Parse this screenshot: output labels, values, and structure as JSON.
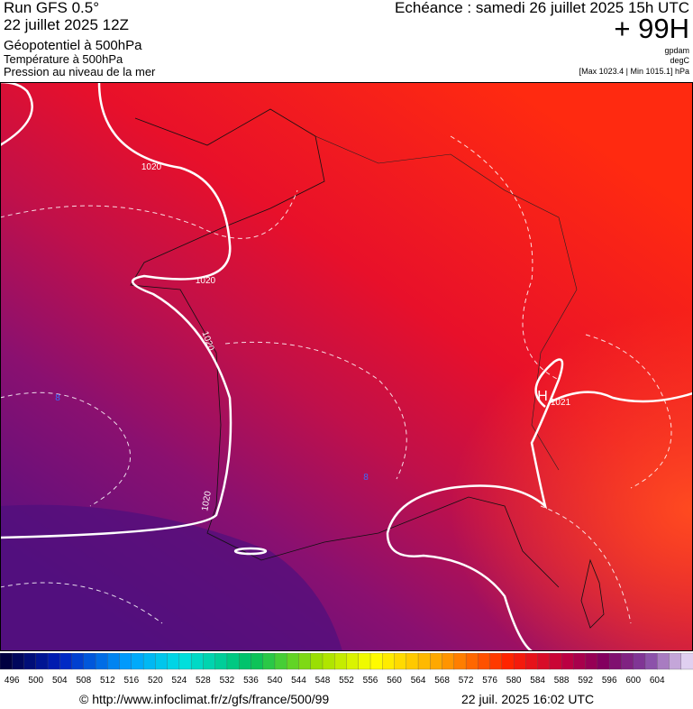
{
  "header": {
    "run": "Run GFS 0.5°",
    "run_date": "22 juillet 2025 12Z",
    "field_1": "Géopotentiel à 500hPa",
    "field_2": "Température à 500hPa",
    "field_3": "Pression au niveau de la mer",
    "valid_time": "Echéance : samedi 26 juillet 2025 15h UTC",
    "lead": "+ 99H",
    "unit_1": "gpdam",
    "unit_2": "degC",
    "pressure_range": "[Max 1023.4 | Min 1015.1] hPa"
  },
  "map": {
    "isobar_labels": [
      "1020",
      "1020",
      "1020",
      "1020",
      "1021"
    ],
    "high_label": "H",
    "temperature_labels": [
      "8",
      "8"
    ]
  },
  "colorbar": {
    "ticks": [
      496,
      500,
      504,
      508,
      512,
      516,
      520,
      524,
      528,
      532,
      536,
      540,
      544,
      548,
      552,
      556,
      560,
      564,
      568,
      572,
      576,
      580,
      584,
      588,
      592,
      596,
      600,
      604
    ]
  },
  "footer": {
    "source": "© http://www.infoclimat.fr/z/gfs/france/500/99",
    "generated": "22 juil. 2025 16:02 UTC"
  }
}
